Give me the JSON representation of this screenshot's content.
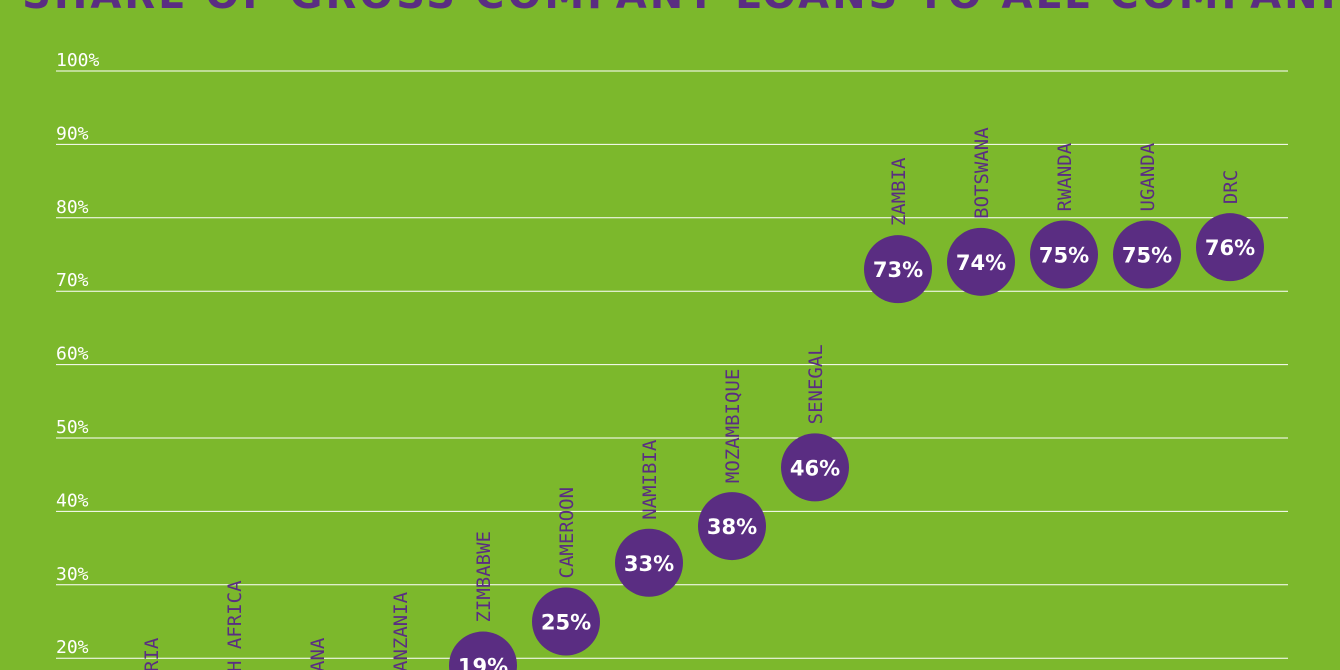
{
  "title_fragment": "AS SHARE OF GROSS COMPANY LOANS TO ALL COMPANIES",
  "colors": {
    "background": "#7cb82c",
    "dot": "#5a2d82",
    "label": "#5a2d82",
    "grid": "#ffffff"
  },
  "chart_data": {
    "type": "scatter",
    "title": "AS SHARE OF GROSS COMPANY LOANS TO ALL COMPANIES",
    "xlabel": "",
    "ylabel": "",
    "ylim": [
      0,
      100
    ],
    "yticks": [
      {
        "value": 100,
        "label": "100%"
      },
      {
        "value": 90,
        "label": "90%"
      },
      {
        "value": 80,
        "label": "80%"
      },
      {
        "value": 70,
        "label": "70%"
      },
      {
        "value": 60,
        "label": "60%"
      },
      {
        "value": 50,
        "label": "50%"
      },
      {
        "value": 40,
        "label": "40%"
      },
      {
        "value": 30,
        "label": "30%"
      },
      {
        "value": 20,
        "label": "20%"
      }
    ],
    "grid": true,
    "categories": [
      "RIA",
      "H AFRICA",
      "ANA",
      "ANZANIA",
      "ZIMBABWE",
      "CAMEROON",
      "NAMIBIA",
      "MOZAMBIQUE",
      "SENEGAL",
      "ZAMBIA",
      "BOTSWANA",
      "RWANDA",
      "UGANDA",
      "DRC"
    ],
    "values": [
      null,
      null,
      null,
      null,
      19,
      25,
      33,
      38,
      46,
      73,
      74,
      75,
      75,
      76
    ],
    "value_labels": [
      "",
      "",
      "",
      "",
      "19%",
      "25%",
      "33%",
      "38%",
      "46%",
      "73%",
      "74%",
      "75%",
      "75%",
      "76%"
    ]
  }
}
